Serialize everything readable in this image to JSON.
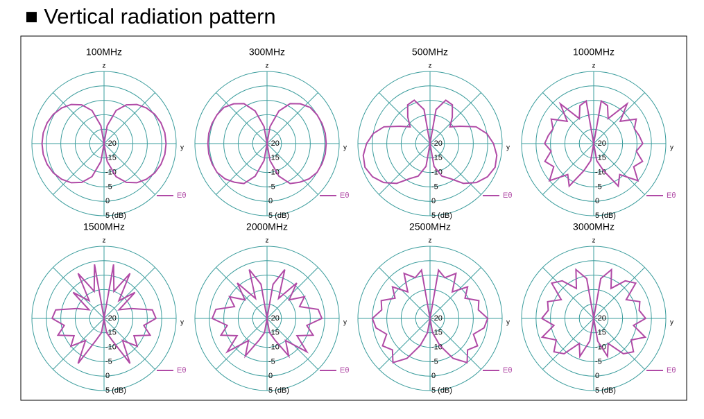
{
  "header": {
    "title": "■ Vertical radiation pattern"
  },
  "chart_data": [
    {
      "type": "polar",
      "title": "100MHz",
      "zlabel": "z",
      "ylabel": "y",
      "grid": true,
      "grid_color": "#3a9c9c",
      "rlim": [
        -20,
        5
      ],
      "rticks": [
        -20,
        -15,
        -10,
        -5,
        0,
        {
          "value": 5,
          "label": "5 (dB)"
        }
      ],
      "theta": [
        0,
        10,
        20,
        30,
        40,
        50,
        60,
        70,
        80,
        90,
        100,
        110,
        120,
        130,
        140,
        150,
        160,
        170,
        180,
        190,
        200,
        210,
        220,
        230,
        240,
        250,
        260,
        270,
        280,
        290,
        300,
        310,
        320,
        330,
        340,
        350
      ],
      "series": [
        {
          "name": "Eθ",
          "color": "#b04aa6",
          "values": [
            -20,
            -13.7,
            -7.8,
            -4.5,
            -2.3,
            -0.8,
            0.3,
            1,
            1.4,
            1.5,
            1.4,
            1,
            0.3,
            -0.8,
            -2.3,
            -4.5,
            -7.8,
            -13.7,
            -20,
            -13.7,
            -7.8,
            -4.5,
            -2.3,
            -0.8,
            0.3,
            1,
            1.4,
            1.5,
            1.4,
            1,
            0.3,
            -0.8,
            -2.3,
            -4.5,
            -7.8,
            -13.7
          ]
        }
      ]
    },
    {
      "type": "polar",
      "title": "300MHz",
      "zlabel": "z",
      "ylabel": "y",
      "grid": true,
      "grid_color": "#3a9c9c",
      "rlim": [
        -20,
        5
      ],
      "rticks": [
        -20,
        -15,
        -10,
        -5,
        0,
        {
          "value": 5,
          "label": "5 (dB)"
        }
      ],
      "theta": [
        0,
        10,
        20,
        30,
        40,
        50,
        60,
        70,
        80,
        90,
        100,
        110,
        120,
        130,
        140,
        150,
        160,
        170,
        180,
        190,
        200,
        210,
        220,
        230,
        240,
        250,
        260,
        270,
        280,
        290,
        300,
        310,
        320,
        330,
        340,
        350
      ],
      "series": [
        {
          "name": "Eθ",
          "color": "#b04aa6",
          "values": [
            -20,
            -14,
            -8,
            -4,
            -2,
            -0.5,
            0,
            0.3,
            0.5,
            0.5,
            0.5,
            0.3,
            0,
            -1,
            -2.5,
            -4,
            -8,
            -14,
            -20,
            -14,
            -8,
            -4,
            -2.5,
            -1,
            0,
            0.3,
            0.5,
            0.5,
            0.5,
            0.3,
            0,
            -0.5,
            -2,
            -4,
            -8,
            -14
          ]
        }
      ]
    },
    {
      "type": "polar",
      "title": "500MHz",
      "zlabel": "z",
      "ylabel": "y",
      "grid": true,
      "grid_color": "#3a9c9c",
      "rlim": [
        -20,
        5
      ],
      "rticks": [
        -20,
        -15,
        -10,
        -5,
        0,
        {
          "value": 5,
          "label": "5 (dB)"
        }
      ],
      "theta": [
        0,
        10,
        20,
        30,
        40,
        50,
        60,
        70,
        80,
        90,
        100,
        110,
        120,
        130,
        140,
        150,
        160,
        170,
        180,
        190,
        200,
        210,
        220,
        230,
        240,
        250,
        260,
        270,
        280,
        290,
        300,
        310,
        320,
        330,
        340,
        350
      ],
      "series": [
        {
          "name": "Eθ",
          "color": "#b04aa6",
          "values": [
            -20,
            -8,
            -4,
            -4.5,
            -8,
            -11,
            -8,
            -3,
            0,
            2,
            3.5,
            4,
            3,
            1,
            -2,
            -6,
            -8,
            -12,
            -20,
            -12,
            -8,
            -6,
            -2,
            1,
            3,
            4,
            3.5,
            2,
            0,
            -3,
            -8,
            -11,
            -8,
            -4.5,
            -4,
            -8
          ]
        }
      ]
    },
    {
      "type": "polar",
      "title": "1000MHz",
      "zlabel": "z",
      "ylabel": "y",
      "grid": true,
      "grid_color": "#3a9c9c",
      "rlim": [
        -20,
        5
      ],
      "rticks": [
        -20,
        -15,
        -10,
        -5,
        0,
        {
          "value": 5,
          "label": "5 (dB)"
        }
      ],
      "theta": [
        0,
        10,
        20,
        30,
        40,
        50,
        60,
        70,
        80,
        90,
        100,
        110,
        120,
        130,
        140,
        150,
        160,
        170,
        180,
        190,
        200,
        210,
        220,
        230,
        240,
        250,
        260,
        270,
        280,
        290,
        300,
        310,
        320,
        330,
        340,
        350
      ],
      "series": [
        {
          "name": "Eθ",
          "color": "#b04aa6",
          "values": [
            -20,
            -5,
            -6,
            -10,
            -2,
            -8,
            -3,
            -5,
            -4,
            -3,
            -5,
            -2,
            -4,
            0,
            -6,
            -3,
            -10,
            -14,
            -20,
            -14,
            -10,
            -3,
            -6,
            0,
            -4,
            -2,
            -5,
            -3,
            -4,
            -5,
            -3,
            -8,
            -2,
            -10,
            -6,
            -5
          ]
        }
      ]
    },
    {
      "type": "polar",
      "title": "1500MHz",
      "zlabel": "z",
      "ylabel": "y",
      "grid": true,
      "grid_color": "#3a9c9c",
      "rlim": [
        -20,
        5
      ],
      "rticks": [
        -20,
        -15,
        -10,
        -5,
        0,
        {
          "value": 5,
          "label": "5 (dB)"
        }
      ],
      "theta": [
        0,
        10,
        20,
        30,
        40,
        50,
        60,
        70,
        80,
        90,
        100,
        110,
        120,
        130,
        140,
        150,
        160,
        170,
        180,
        190,
        200,
        210,
        220,
        230,
        240,
        250,
        260,
        270,
        280,
        290,
        300,
        310,
        320,
        330,
        340,
        350
      ],
      "series": [
        {
          "name": "Eθ",
          "color": "#b04aa6",
          "values": [
            -20,
            -1,
            -10,
            -2,
            -12,
            -6,
            -14,
            -10,
            -3,
            -2,
            -6,
            -3,
            -8,
            -5,
            -10,
            -2,
            -12,
            -15,
            -20,
            -15,
            -12,
            -2,
            -10,
            -5,
            -8,
            -3,
            -6,
            -2,
            -3,
            -10,
            -14,
            -6,
            -12,
            -2,
            -10,
            -1
          ]
        }
      ]
    },
    {
      "type": "polar",
      "title": "2000MHz",
      "zlabel": "z",
      "ylabel": "y",
      "grid": true,
      "grid_color": "#3a9c9c",
      "rlim": [
        -20,
        5
      ],
      "rticks": [
        -20,
        -15,
        -10,
        -5,
        0,
        {
          "value": 5,
          "label": "5 (dB)"
        }
      ],
      "theta": [
        0,
        10,
        20,
        30,
        40,
        50,
        60,
        70,
        80,
        90,
        100,
        110,
        120,
        130,
        140,
        150,
        160,
        170,
        180,
        190,
        200,
        210,
        220,
        230,
        240,
        250,
        260,
        270,
        280,
        290,
        300,
        310,
        320,
        330,
        340,
        350
      ],
      "series": [
        {
          "name": "Eθ",
          "color": "#b04aa6",
          "values": [
            -20,
            -8,
            -2,
            -12,
            -4,
            -10,
            -5,
            -8,
            -2,
            -1,
            -6,
            -3,
            -8,
            -2,
            -10,
            -5,
            -12,
            -15,
            -20,
            -15,
            -12,
            -5,
            -10,
            -2,
            -8,
            -3,
            -6,
            -1,
            -2,
            -8,
            -5,
            -10,
            -4,
            -12,
            -2,
            -8
          ]
        }
      ]
    },
    {
      "type": "polar",
      "title": "2500MHz",
      "zlabel": "z",
      "ylabel": "y",
      "grid": true,
      "grid_color": "#3a9c9c",
      "rlim": [
        -20,
        5
      ],
      "rticks": [
        -20,
        -15,
        -10,
        -5,
        0,
        {
          "value": 5,
          "label": "5 (dB)"
        }
      ],
      "theta": [
        0,
        10,
        20,
        30,
        40,
        50,
        60,
        70,
        80,
        90,
        100,
        110,
        120,
        130,
        140,
        150,
        160,
        170,
        180,
        190,
        200,
        210,
        220,
        230,
        240,
        250,
        260,
        270,
        280,
        290,
        300,
        310,
        320,
        330,
        340,
        350
      ],
      "series": [
        {
          "name": "Eθ",
          "color": "#b04aa6",
          "values": [
            -20,
            -3,
            -5,
            -2,
            -8,
            -3,
            -6,
            -2,
            -3,
            0,
            -1,
            -4,
            -1,
            -3,
            0,
            -4,
            -10,
            -15,
            -20,
            -15,
            -10,
            -4,
            0,
            -3,
            -1,
            -4,
            -1,
            0,
            -3,
            -2,
            -6,
            -3,
            -8,
            -2,
            -5,
            -3
          ]
        }
      ]
    },
    {
      "type": "polar",
      "title": "3000MHz",
      "zlabel": "z",
      "ylabel": "y",
      "grid": true,
      "grid_color": "#3a9c9c",
      "rlim": [
        -20,
        5
      ],
      "rticks": [
        -20,
        -15,
        -10,
        -5,
        0,
        {
          "value": 5,
          "label": "5 (dB)"
        }
      ],
      "theta": [
        0,
        10,
        20,
        30,
        40,
        50,
        60,
        70,
        80,
        90,
        100,
        110,
        120,
        130,
        140,
        150,
        160,
        170,
        180,
        190,
        200,
        210,
        220,
        230,
        240,
        250,
        260,
        270,
        280,
        290,
        300,
        310,
        320,
        330,
        340,
        350
      ],
      "series": [
        {
          "name": "Eθ",
          "color": "#b04aa6",
          "values": [
            -20,
            -6,
            -2,
            -8,
            -3,
            -1,
            -7,
            -3,
            -4,
            -2,
            -6,
            -1,
            -5,
            -2,
            -4,
            -10,
            -6,
            -12,
            -20,
            -12,
            -6,
            -10,
            -4,
            -2,
            -5,
            -1,
            -6,
            -2,
            -4,
            -3,
            -7,
            -1,
            -3,
            -8,
            -2,
            -6
          ]
        }
      ]
    }
  ]
}
